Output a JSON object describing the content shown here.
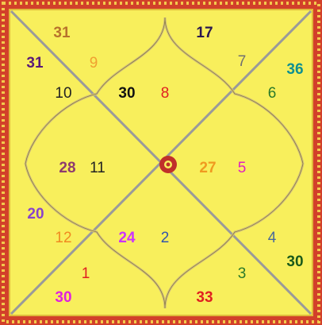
{
  "labels": [
    "31",
    "17",
    "31",
    "9",
    "7",
    "36",
    "10",
    "30",
    "8",
    "6",
    "28",
    "11",
    "27",
    "5",
    "20",
    "12",
    "24",
    "2",
    "4",
    "30",
    "1",
    "3",
    "30",
    "33"
  ]
}
